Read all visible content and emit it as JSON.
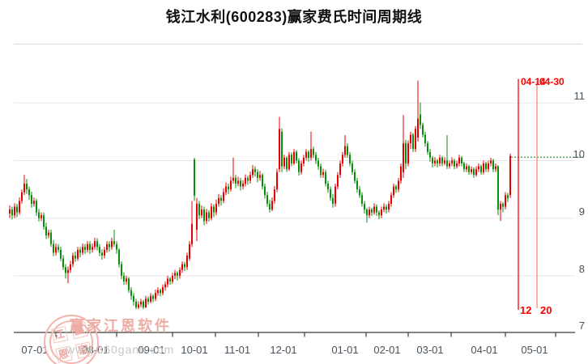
{
  "title": "钱江水利(600283)赢家费氏时间周期线",
  "colors": {
    "up": "#e60000",
    "down": "#0a8f0a",
    "grid": "#e8e8e8",
    "separator": "#dcdcdc",
    "axis": "#3c3c3c",
    "label": "#46525c",
    "cycle_line_1": "#ff0000",
    "cycle_line_2": "#ff8080",
    "annotation_text": "#ff0000",
    "target_line": "#0a870a"
  },
  "chart_data": {
    "type": "candlestick",
    "stock_name": "钱江水利",
    "stock_code": "600283",
    "indicator": "赢家费氏时间周期线",
    "y_axis": {
      "tick_labels": [
        "11",
        "10",
        "9",
        "8",
        "7"
      ],
      "grid_prices": [
        11,
        10,
        9,
        8
      ],
      "min": 7,
      "max": 11.4,
      "grid": true
    },
    "x_axis": {
      "tick_labels": [
        "07-01",
        "08-01",
        "09-01",
        "10-01",
        "11-01",
        "12-01",
        "01-01",
        "02-01",
        "03-01",
        "04-01",
        "05-01"
      ]
    },
    "annotations": {
      "fib_line_1": {
        "date_label": "04-14",
        "cycle_label": "12"
      },
      "fib_line_2": {
        "date_label": "04-30",
        "cycle_label": "20"
      },
      "price_line": {
        "price": 10.06
      }
    },
    "candles_ohlc": [
      [
        9.08,
        9.22,
        9.0,
        9.15
      ],
      [
        9.15,
        9.2,
        8.98,
        9.05
      ],
      [
        9.05,
        9.26,
        9.0,
        9.2
      ],
      [
        9.2,
        9.25,
        9.02,
        9.1
      ],
      [
        9.1,
        9.36,
        9.06,
        9.3
      ],
      [
        9.3,
        9.5,
        9.25,
        9.45
      ],
      [
        9.45,
        9.75,
        9.4,
        9.6
      ],
      [
        9.6,
        9.68,
        9.42,
        9.5
      ],
      [
        9.5,
        9.55,
        9.32,
        9.4
      ],
      [
        9.4,
        9.46,
        9.18,
        9.25
      ],
      [
        9.25,
        9.36,
        9.2,
        9.3
      ],
      [
        9.3,
        9.34,
        9.04,
        9.1
      ],
      [
        9.1,
        9.16,
        8.94,
        9.0
      ],
      [
        9.0,
        9.1,
        8.95,
        9.05
      ],
      [
        9.05,
        9.1,
        8.8,
        8.85
      ],
      [
        8.85,
        8.92,
        8.64,
        8.7
      ],
      [
        8.7,
        8.8,
        8.65,
        8.75
      ],
      [
        8.75,
        8.8,
        8.5,
        8.55
      ],
      [
        8.55,
        8.62,
        8.34,
        8.4
      ],
      [
        8.4,
        8.56,
        8.35,
        8.5
      ],
      [
        8.5,
        8.55,
        8.4,
        8.45
      ],
      [
        8.45,
        8.5,
        8.25,
        8.3
      ],
      [
        8.3,
        8.36,
        8.1,
        8.15
      ],
      [
        8.15,
        8.2,
        7.95,
        8.05
      ],
      [
        8.05,
        8.16,
        7.87,
        8.1
      ],
      [
        8.1,
        8.26,
        8.05,
        8.2
      ],
      [
        8.2,
        8.4,
        8.15,
        8.35
      ],
      [
        8.35,
        8.42,
        8.24,
        8.3
      ],
      [
        8.3,
        8.5,
        8.26,
        8.45
      ],
      [
        8.45,
        8.5,
        8.32,
        8.4
      ],
      [
        8.4,
        8.56,
        8.36,
        8.5
      ],
      [
        8.5,
        8.55,
        8.38,
        8.45
      ],
      [
        8.45,
        8.6,
        8.4,
        8.55
      ],
      [
        8.55,
        8.6,
        8.38,
        8.45
      ],
      [
        8.45,
        8.56,
        8.4,
        8.5
      ],
      [
        8.5,
        8.66,
        8.45,
        8.6
      ],
      [
        8.6,
        8.65,
        8.44,
        8.5
      ],
      [
        8.5,
        8.55,
        8.34,
        8.4
      ],
      [
        8.4,
        8.46,
        8.28,
        8.35
      ],
      [
        8.35,
        8.5,
        8.3,
        8.45
      ],
      [
        8.45,
        8.6,
        8.4,
        8.55
      ],
      [
        8.55,
        8.6,
        8.42,
        8.5
      ],
      [
        8.5,
        8.66,
        8.45,
        8.6
      ],
      [
        8.6,
        8.8,
        8.5,
        8.55
      ],
      [
        8.55,
        8.6,
        8.38,
        8.45
      ],
      [
        8.45,
        8.48,
        8.14,
        8.2
      ],
      [
        8.2,
        8.25,
        7.94,
        8.0
      ],
      [
        8.0,
        8.06,
        7.84,
        7.9
      ],
      [
        7.9,
        8.0,
        7.85,
        7.95
      ],
      [
        7.95,
        7.98,
        7.7,
        7.75
      ],
      [
        7.75,
        7.8,
        7.58,
        7.65
      ],
      [
        7.65,
        7.7,
        7.48,
        7.55
      ],
      [
        7.55,
        7.6,
        7.42,
        7.45
      ],
      [
        7.45,
        7.56,
        7.42,
        7.5
      ],
      [
        7.5,
        7.6,
        7.45,
        7.55
      ],
      [
        7.55,
        7.58,
        7.42,
        7.45
      ],
      [
        7.45,
        7.65,
        7.44,
        7.6
      ],
      [
        7.6,
        7.64,
        7.5,
        7.55
      ],
      [
        7.55,
        7.7,
        7.52,
        7.65
      ],
      [
        7.65,
        7.68,
        7.54,
        7.6
      ],
      [
        7.6,
        7.76,
        7.56,
        7.7
      ],
      [
        7.7,
        7.8,
        7.65,
        7.75
      ],
      [
        7.75,
        7.78,
        7.64,
        7.7
      ],
      [
        7.7,
        7.85,
        7.66,
        7.8
      ],
      [
        7.8,
        7.9,
        7.74,
        7.85
      ],
      [
        7.85,
        8.0,
        7.8,
        7.95
      ],
      [
        7.95,
        7.98,
        7.84,
        7.9
      ],
      [
        7.9,
        8.05,
        7.86,
        8.0
      ],
      [
        8.0,
        8.1,
        7.94,
        8.05
      ],
      [
        8.05,
        8.08,
        7.92,
        8.0
      ],
      [
        8.0,
        8.15,
        7.95,
        8.1
      ],
      [
        8.1,
        8.25,
        8.05,
        8.2
      ],
      [
        8.2,
        8.24,
        8.08,
        8.15
      ],
      [
        8.15,
        8.4,
        8.1,
        8.35
      ],
      [
        8.3,
        8.6,
        8.26,
        8.55
      ],
      [
        8.55,
        9.3,
        8.5,
        8.9
      ],
      [
        10.02,
        10.05,
        9.3,
        9.39
      ],
      [
        8.8,
        9.35,
        8.6,
        9.25
      ],
      [
        9.25,
        9.3,
        8.98,
        9.05
      ],
      [
        9.05,
        9.22,
        9.0,
        9.15
      ],
      [
        9.15,
        9.2,
        8.88,
        8.95
      ],
      [
        8.95,
        9.16,
        8.9,
        9.1
      ],
      [
        9.1,
        9.14,
        8.94,
        9.0
      ],
      [
        9.0,
        9.26,
        8.96,
        9.2
      ],
      [
        9.2,
        9.24,
        9.02,
        9.1
      ],
      [
        9.1,
        9.32,
        9.05,
        9.25
      ],
      [
        9.25,
        9.42,
        9.2,
        9.35
      ],
      [
        9.35,
        9.4,
        9.22,
        9.3
      ],
      [
        9.3,
        9.52,
        9.26,
        9.45
      ],
      [
        9.45,
        9.62,
        9.4,
        9.55
      ],
      [
        9.55,
        9.6,
        9.42,
        9.5
      ],
      [
        9.5,
        9.72,
        9.46,
        9.65
      ],
      [
        9.65,
        10.05,
        9.6,
        9.7
      ],
      [
        9.7,
        9.75,
        9.52,
        9.6
      ],
      [
        9.6,
        9.72,
        9.55,
        9.65
      ],
      [
        9.65,
        9.7,
        9.48,
        9.55
      ],
      [
        9.55,
        9.66,
        9.5,
        9.6
      ],
      [
        9.6,
        9.76,
        9.55,
        9.7
      ],
      [
        9.7,
        9.74,
        9.58,
        9.65
      ],
      [
        9.65,
        9.81,
        9.6,
        9.75
      ],
      [
        9.75,
        9.92,
        9.7,
        9.85
      ],
      [
        9.85,
        9.9,
        9.72,
        9.8
      ],
      [
        9.8,
        9.85,
        9.62,
        9.7
      ],
      [
        9.7,
        9.82,
        9.65,
        9.75
      ],
      [
        9.75,
        9.78,
        9.5,
        9.55
      ],
      [
        9.55,
        9.6,
        9.34,
        9.4
      ],
      [
        9.4,
        9.46,
        9.2,
        9.25
      ],
      [
        9.25,
        9.32,
        9.1,
        9.15
      ],
      [
        9.15,
        9.36,
        9.12,
        9.3
      ],
      [
        9.3,
        9.56,
        9.25,
        9.5
      ],
      [
        9.5,
        9.86,
        9.45,
        9.8
      ],
      [
        9.85,
        10.76,
        9.8,
        10.55
      ],
      [
        10.5,
        10.56,
        9.8,
        9.9
      ],
      [
        9.9,
        10.1,
        9.85,
        10.05
      ],
      [
        10.05,
        10.08,
        9.8,
        9.85
      ],
      [
        9.85,
        10.15,
        9.82,
        10.1
      ],
      [
        10.1,
        10.14,
        9.9,
        9.95
      ],
      [
        9.95,
        10.2,
        9.92,
        10.15
      ],
      [
        10.15,
        10.18,
        9.95,
        10.0
      ],
      [
        10.0,
        10.04,
        9.74,
        9.8
      ],
      [
        9.8,
        10.0,
        9.76,
        9.95
      ],
      [
        9.95,
        10.1,
        9.9,
        10.05
      ],
      [
        10.05,
        10.2,
        10.0,
        10.15
      ],
      [
        10.15,
        10.18,
        9.98,
        10.05
      ],
      [
        10.05,
        10.5,
        10.0,
        10.2
      ],
      [
        10.2,
        10.24,
        10.04,
        10.1
      ],
      [
        10.1,
        10.15,
        9.94,
        10.0
      ],
      [
        10.0,
        10.05,
        9.84,
        9.9
      ],
      [
        9.9,
        9.95,
        9.7,
        9.75
      ],
      [
        9.75,
        9.86,
        9.7,
        9.8
      ],
      [
        9.8,
        9.84,
        9.55,
        9.6
      ],
      [
        9.6,
        9.65,
        9.44,
        9.5
      ],
      [
        9.5,
        9.55,
        9.3,
        9.35
      ],
      [
        9.35,
        9.42,
        9.18,
        9.25
      ],
      [
        9.25,
        9.6,
        9.2,
        9.55
      ],
      [
        9.55,
        9.8,
        9.5,
        9.75
      ],
      [
        9.75,
        10.0,
        9.7,
        9.95
      ],
      [
        9.95,
        10.15,
        9.9,
        10.1
      ],
      [
        10.1,
        10.44,
        10.05,
        10.25
      ],
      [
        10.25,
        10.3,
        10.05,
        10.1
      ],
      [
        10.1,
        10.15,
        9.9,
        9.95
      ],
      [
        9.95,
        10.0,
        9.75,
        9.8
      ],
      [
        9.8,
        9.85,
        9.6,
        9.65
      ],
      [
        9.65,
        9.7,
        9.44,
        9.5
      ],
      [
        9.5,
        9.56,
        9.35,
        9.4
      ],
      [
        9.4,
        9.45,
        9.2,
        9.25
      ],
      [
        9.25,
        9.3,
        9.08,
        9.15
      ],
      [
        9.15,
        9.18,
        8.92,
        9.05
      ],
      [
        9.05,
        9.2,
        9.0,
        9.15
      ],
      [
        9.15,
        9.18,
        9.04,
        9.1
      ],
      [
        9.1,
        9.26,
        9.06,
        9.2
      ],
      [
        9.2,
        9.24,
        9.04,
        9.1
      ],
      [
        9.1,
        9.14,
        8.98,
        9.05
      ],
      [
        9.05,
        9.2,
        9.0,
        9.15
      ],
      [
        9.15,
        9.26,
        9.1,
        9.2
      ],
      [
        9.2,
        9.24,
        9.08,
        9.15
      ],
      [
        9.15,
        9.3,
        9.1,
        9.25
      ],
      [
        9.25,
        9.45,
        9.2,
        9.4
      ],
      [
        9.4,
        9.6,
        9.35,
        9.55
      ],
      [
        9.55,
        9.58,
        9.44,
        9.5
      ],
      [
        9.5,
        9.7,
        9.45,
        9.65
      ],
      [
        9.65,
        9.95,
        9.6,
        9.9
      ],
      [
        9.8,
        10.79,
        9.7,
        10.3
      ],
      [
        10.3,
        10.36,
        9.85,
        9.95
      ],
      [
        9.95,
        10.35,
        9.9,
        10.3
      ],
      [
        10.3,
        10.5,
        10.2,
        10.45
      ],
      [
        10.45,
        10.48,
        10.15,
        10.2
      ],
      [
        10.2,
        10.6,
        10.15,
        10.55
      ],
      [
        10.4,
        11.39,
        10.33,
        10.73
      ],
      [
        10.8,
        11.01,
        10.55,
        10.62
      ],
      [
        10.62,
        10.66,
        10.4,
        10.45
      ],
      [
        10.45,
        10.5,
        10.24,
        10.3
      ],
      [
        10.3,
        10.34,
        10.1,
        10.15
      ],
      [
        10.15,
        10.2,
        9.98,
        10.05
      ],
      [
        10.05,
        10.08,
        9.88,
        9.95
      ],
      [
        9.95,
        10.06,
        9.9,
        10.0
      ],
      [
        10.0,
        10.03,
        9.88,
        9.95
      ],
      [
        9.95,
        10.1,
        9.9,
        10.05
      ],
      [
        10.05,
        10.08,
        9.9,
        9.95
      ],
      [
        9.95,
        10.06,
        9.92,
        10.0
      ],
      [
        10.0,
        10.44,
        9.85,
        9.9
      ],
      [
        9.9,
        10.0,
        9.86,
        9.95
      ],
      [
        9.95,
        10.06,
        9.9,
        10.0
      ],
      [
        10.0,
        10.03,
        9.85,
        9.9
      ],
      [
        9.9,
        10.0,
        9.86,
        9.95
      ],
      [
        9.95,
        10.1,
        9.9,
        10.05
      ],
      [
        10.05,
        10.08,
        9.9,
        9.95
      ],
      [
        9.95,
        9.98,
        9.8,
        9.85
      ],
      [
        9.85,
        9.95,
        9.8,
        9.9
      ],
      [
        9.9,
        9.93,
        9.75,
        9.8
      ],
      [
        9.8,
        9.9,
        9.76,
        9.85
      ],
      [
        9.85,
        9.88,
        9.7,
        9.75
      ],
      [
        9.75,
        9.9,
        9.72,
        9.85
      ],
      [
        9.85,
        9.95,
        9.8,
        9.9
      ],
      [
        9.9,
        9.93,
        9.75,
        9.8
      ],
      [
        9.8,
        10.0,
        9.76,
        9.95
      ],
      [
        9.95,
        9.98,
        9.8,
        9.85
      ],
      [
        9.85,
        10.0,
        9.8,
        9.95
      ],
      [
        9.95,
        10.05,
        9.9,
        10.0
      ],
      [
        10.0,
        10.03,
        9.8,
        9.85
      ],
      [
        9.85,
        9.95,
        9.8,
        9.9
      ],
      [
        9.9,
        9.92,
        9.05,
        9.15
      ],
      [
        9.15,
        9.3,
        8.95,
        9.25
      ],
      [
        9.25,
        9.28,
        9.1,
        9.2
      ],
      [
        9.2,
        9.45,
        9.15,
        9.4
      ],
      [
        9.4,
        9.44,
        9.28,
        9.35
      ],
      [
        9.4,
        10.12,
        9.35,
        10.08
      ]
    ]
  },
  "watermark": {
    "seal_chars": [
      "江",
      "赢",
      "恩",
      "家"
    ],
    "brand": "赢家江恩软件",
    "site": "www.360gann.com"
  }
}
